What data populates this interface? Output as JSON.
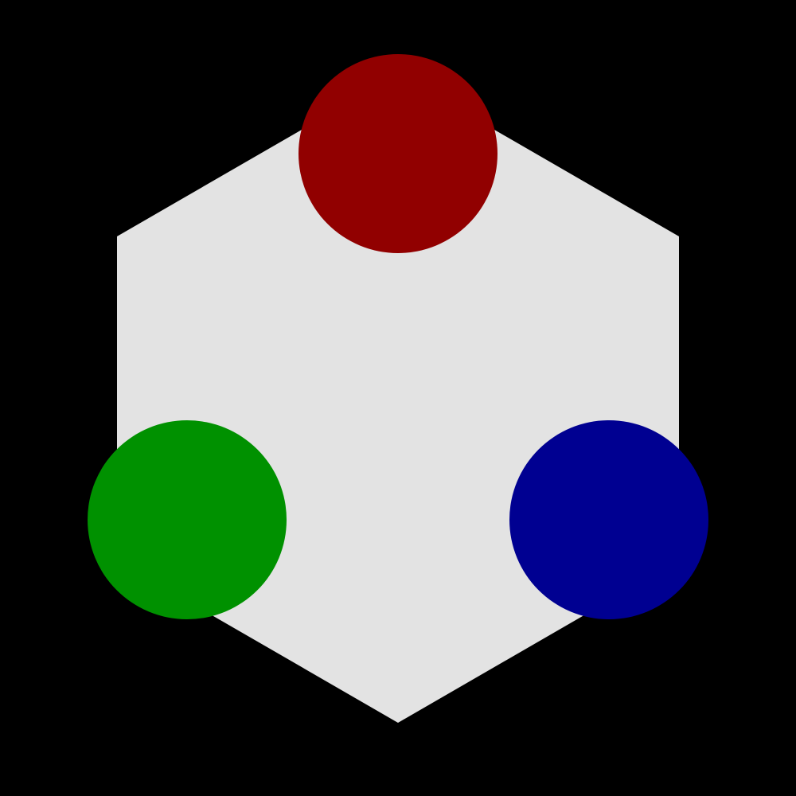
{
  "colors": {
    "background": "#000000",
    "hexagon": "#e3e3e3",
    "red_circle": "#910000",
    "green_circle": "#009100",
    "blue_circle": "#000091"
  },
  "shapes": {
    "hexagon": "hexagon",
    "circles": [
      "red-circle",
      "green-circle",
      "blue-circle"
    ]
  }
}
